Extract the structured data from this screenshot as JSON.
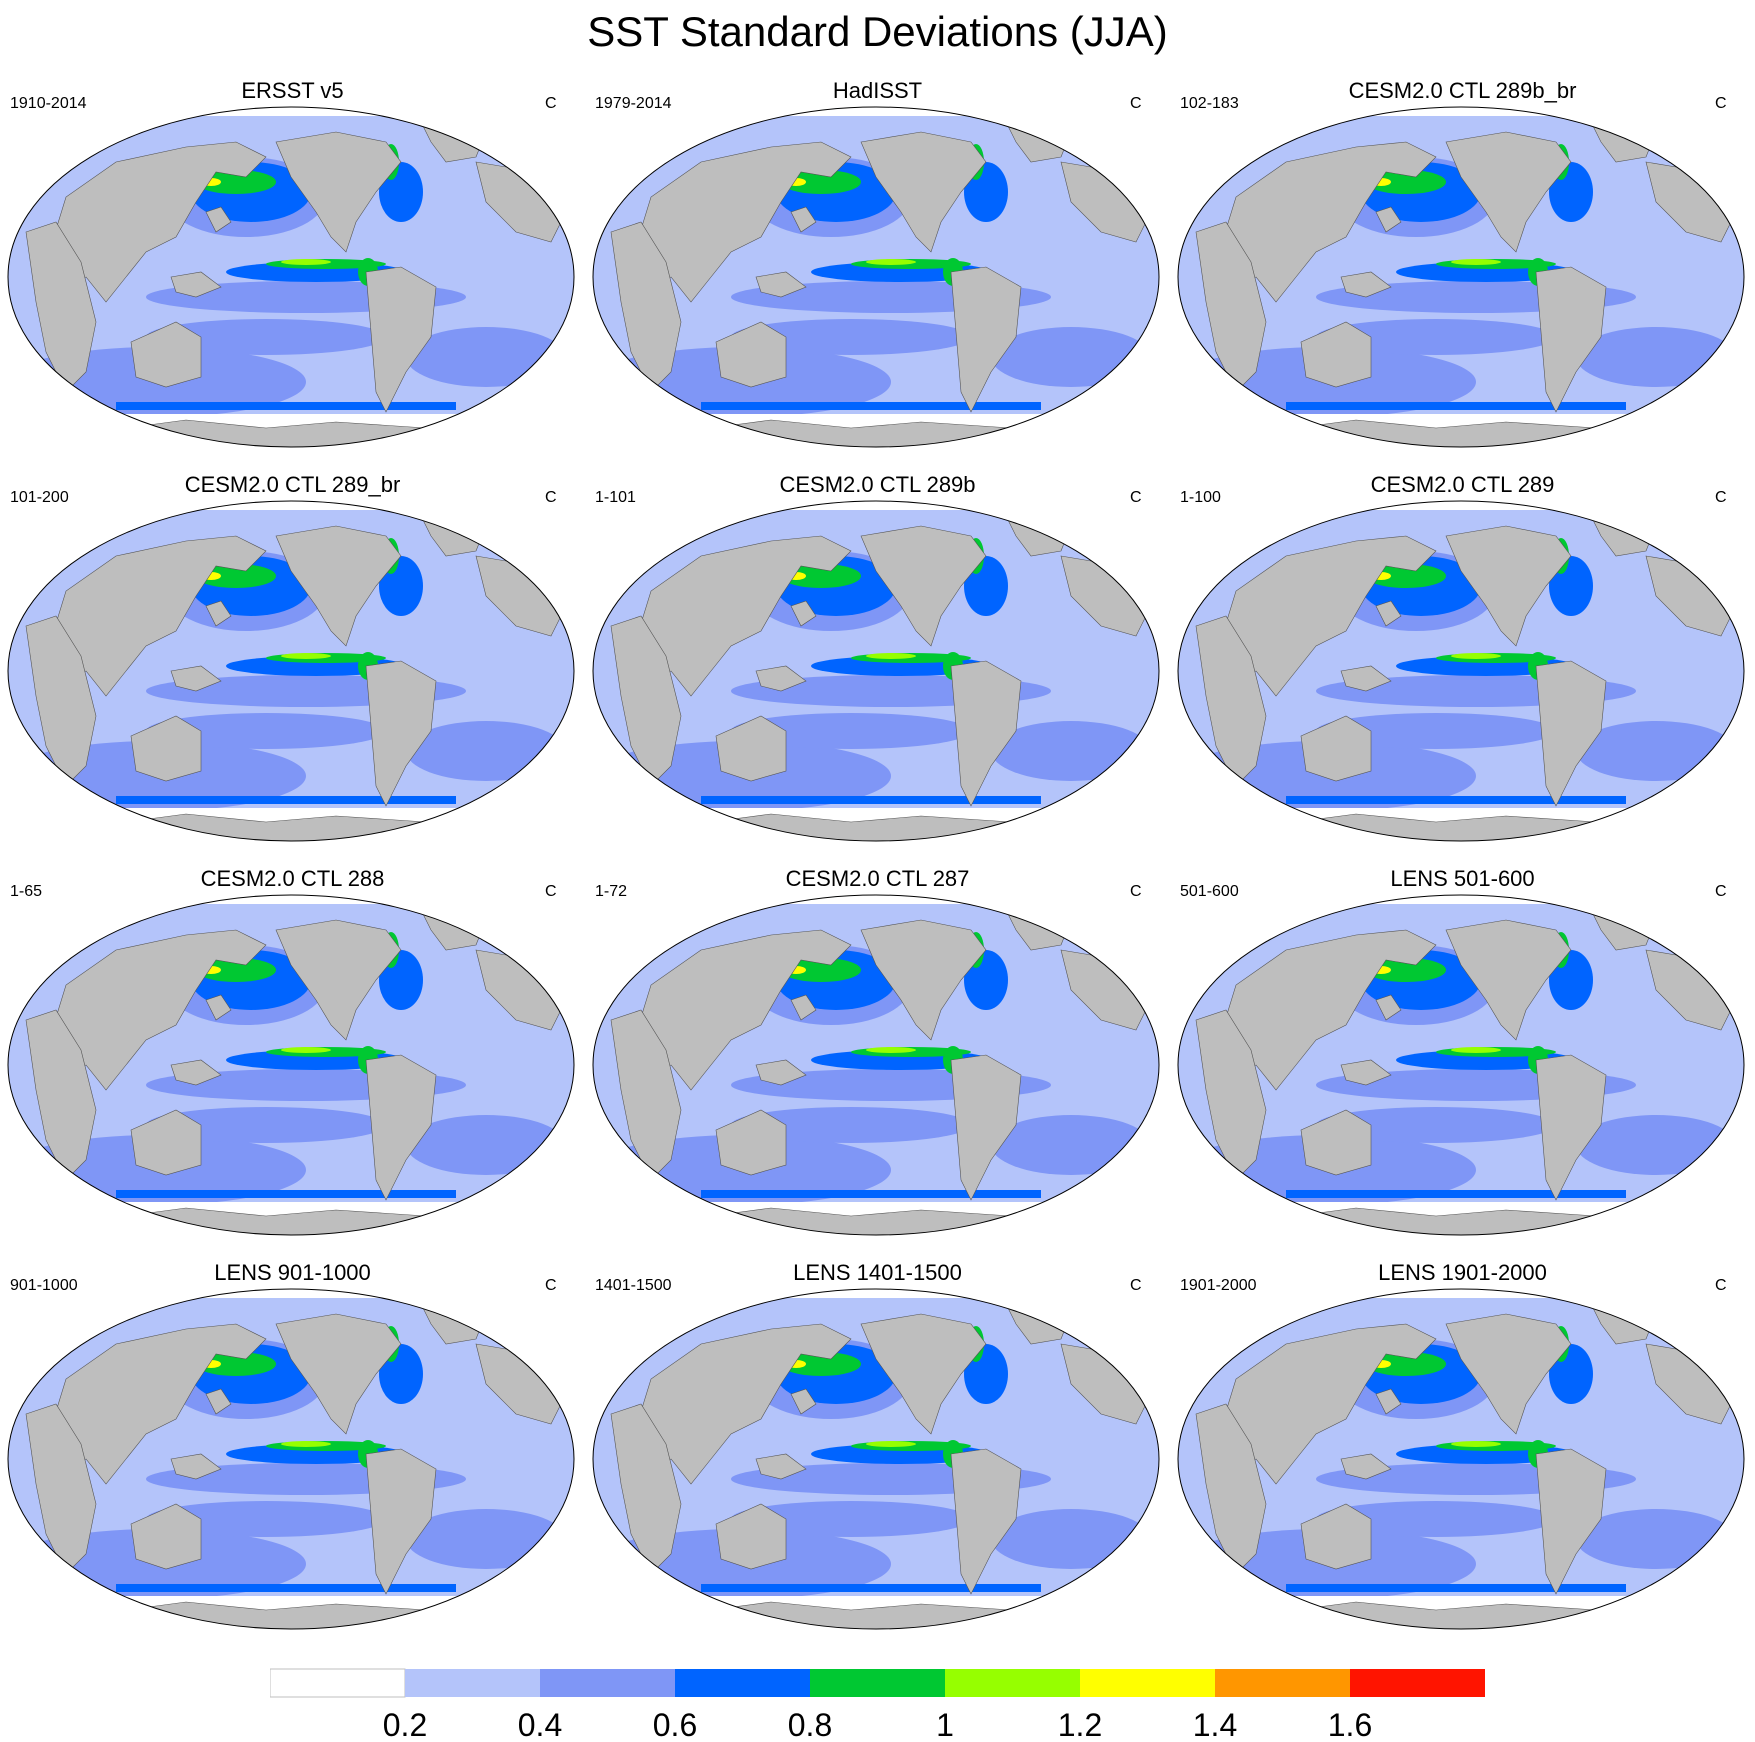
{
  "title": "SST Standard Deviations (JJA)",
  "units": "C",
  "panels": [
    {
      "title": "ERSST v5",
      "years": "1910-2014"
    },
    {
      "title": "HadISST",
      "years": "1979-2014"
    },
    {
      "title": "CESM2.0 CTL 289b_br",
      "years": "102-183"
    },
    {
      "title": "CESM2.0 CTL 289_br",
      "years": "101-200"
    },
    {
      "title": "CESM2.0 CTL 289b",
      "years": "1-101"
    },
    {
      "title": "CESM2.0 CTL 289",
      "years": "1-100"
    },
    {
      "title": "CESM2.0 CTL 288",
      "years": "1-65"
    },
    {
      "title": "CESM2.0 CTL 287",
      "years": "1-72"
    },
    {
      "title": "LENS 501-600",
      "years": "501-600"
    },
    {
      "title": "LENS 901-1000",
      "years": "901-1000"
    },
    {
      "title": "LENS 1401-1500",
      "years": "1401-1500"
    },
    {
      "title": "LENS 1901-2000",
      "years": "1901-2000"
    }
  ],
  "colorbar": {
    "levels": [
      "0.2",
      "0.4",
      "0.6",
      "0.8",
      "1",
      "1.2",
      "1.4",
      "1.6"
    ],
    "colors": [
      "#ffffff",
      "#b4c4fa",
      "#7f96f6",
      "#0064ff",
      "#00c832",
      "#96ff00",
      "#ffff00",
      "#ff9600",
      "#ff1400"
    ]
  },
  "map_colors": {
    "land": "#bebebe",
    "low_variance": "#ffffff",
    "background_variance": "#b4c4fa",
    "moderate_variance": "#7f96f6",
    "high_variance": "#0064ff",
    "very_high_variance": "#00c832",
    "peak_variance": "#96ff00",
    "extreme_variance": "#ffff00"
  }
}
